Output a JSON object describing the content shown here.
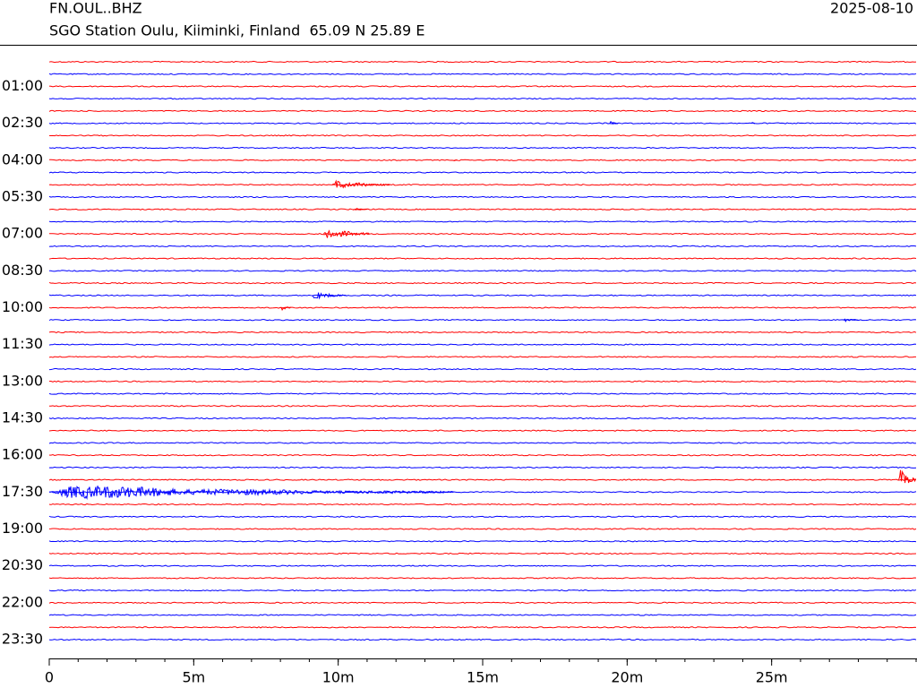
{
  "chart_data": {
    "type": "helicorder",
    "title": "FN.OUL..BHZ",
    "subtitle": "SGO Station Oulu, Kiiminki, Finland  65.09 N 25.89 E",
    "date": "2025-08-10",
    "colors": [
      "#ff0000",
      "#0000ff"
    ],
    "categories": [
      null,
      null,
      "01:00",
      null,
      null,
      "02:30",
      null,
      null,
      "04:00",
      null,
      null,
      "05:30",
      null,
      null,
      "07:00",
      null,
      null,
      "08:30",
      null,
      null,
      "10:00",
      null,
      null,
      "11:30",
      null,
      null,
      "13:00",
      null,
      null,
      "14:30",
      null,
      null,
      "16:00",
      null,
      null,
      "17:30",
      null,
      null,
      "19:00",
      null,
      null,
      "20:30",
      null,
      null,
      "22:00",
      null,
      null,
      "23:30"
    ],
    "xlim": [
      0,
      30
    ],
    "xticks": [
      0,
      {
        "value": 5,
        "label": "5m"
      },
      {
        "value": 10,
        "label": "10m"
      },
      {
        "value": 15,
        "label": "15m"
      },
      {
        "value": 20,
        "label": "20m"
      },
      {
        "value": 25,
        "label": "25m"
      }
    ],
    "minor_step": 1,
    "events": [
      {
        "trace": 5,
        "start": 19.4,
        "duration": 0.3,
        "amplitude": 0.2
      },
      {
        "trace": 5,
        "start": 24.3,
        "duration": 0.15,
        "amplitude": 0.12
      },
      {
        "trace": 8,
        "start": 14.0,
        "duration": 0.15,
        "amplitude": 0.15
      },
      {
        "trace": 10,
        "start": 9.8,
        "duration": 2.0,
        "amplitude": 0.45
      },
      {
        "trace": 12,
        "start": 10.5,
        "duration": 0.5,
        "amplitude": 0.2
      },
      {
        "trace": 14,
        "start": 9.5,
        "duration": 1.6,
        "amplitude": 0.65
      },
      {
        "trace": 19,
        "start": 9.1,
        "duration": 1.2,
        "amplitude": 0.4
      },
      {
        "trace": 20,
        "start": 8.0,
        "duration": 0.4,
        "amplitude": 0.3
      },
      {
        "trace": 21,
        "start": 27.5,
        "duration": 0.5,
        "amplitude": 0.2
      },
      {
        "trace": 34,
        "start": 29.4,
        "duration": 0.6,
        "amplitude": 1.1
      },
      {
        "trace": 35,
        "start": 0,
        "duration": 14,
        "amplitude": 0.7
      }
    ]
  }
}
